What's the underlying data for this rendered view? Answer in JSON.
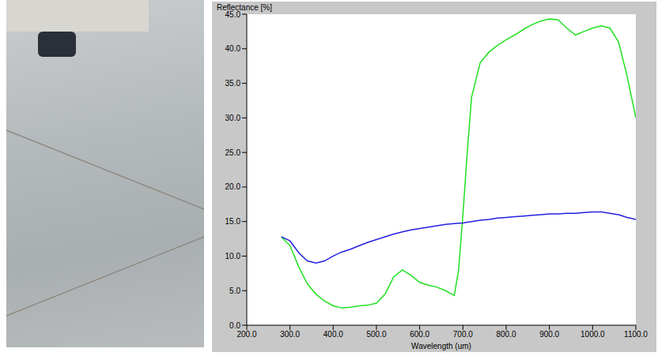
{
  "chart_data": {
    "type": "line",
    "y_label": "Reflectance [%]",
    "x_label": "Wavelength (um)",
    "x": [
      280,
      300,
      320,
      340,
      360,
      380,
      400,
      420,
      440,
      460,
      480,
      500,
      520,
      540,
      560,
      580,
      600,
      620,
      640,
      660,
      680,
      690,
      700,
      710,
      720,
      740,
      760,
      780,
      800,
      820,
      840,
      860,
      880,
      900,
      920,
      940,
      960,
      980,
      1000,
      1020,
      1040,
      1060,
      1080,
      1100
    ],
    "series": [
      {
        "color": "#22e022",
        "values": [
          12.8,
          11.5,
          8.5,
          6,
          4.5,
          3.5,
          2.8,
          2.5,
          2.6,
          2.8,
          2.9,
          3.2,
          4.5,
          7,
          8.0,
          7.2,
          6.2,
          5.8,
          5.5,
          5.0,
          4.3,
          8,
          16,
          25,
          33,
          38,
          39.5,
          40.5,
          41.3,
          42,
          42.8,
          43.5,
          44,
          44.3,
          44.2,
          43,
          42,
          42.5,
          43,
          43.3,
          43,
          41,
          36,
          30
        ]
      },
      {
        "color": "#2222e0",
        "values": [
          12.8,
          12.2,
          10.5,
          9.3,
          9.0,
          9.3,
          10,
          10.6,
          11,
          11.5,
          12,
          12.4,
          12.8,
          13.2,
          13.5,
          13.8,
          14,
          14.2,
          14.4,
          14.6,
          14.7,
          14.75,
          14.8,
          14.9,
          15,
          15.2,
          15.3,
          15.5,
          15.6,
          15.7,
          15.8,
          15.9,
          16,
          16.1,
          16.1,
          16.2,
          16.2,
          16.3,
          16.4,
          16.4,
          16.2,
          16,
          15.6,
          15.3
        ]
      }
    ],
    "xlim": [
      200,
      1100
    ],
    "xticks": [
      {
        "value": 200,
        "label": "200.0"
      },
      {
        "value": 300,
        "label": "300.0"
      },
      {
        "value": 400,
        "label": "400.0"
      },
      {
        "value": 500,
        "label": "500.0"
      },
      {
        "value": 600,
        "label": "600.0"
      },
      {
        "value": 700,
        "label": "700.0"
      },
      {
        "value": 800,
        "label": "800.0"
      },
      {
        "value": 900,
        "label": "900.0"
      },
      {
        "value": 1000,
        "label": "1000.0"
      },
      {
        "value": 1100,
        "label": "1100.0"
      }
    ],
    "ylim": [
      0,
      45
    ],
    "yticks": [
      {
        "value": 0,
        "label": "0.0"
      },
      {
        "value": 5,
        "label": "5.0"
      },
      {
        "value": 10,
        "label": "10.0"
      },
      {
        "value": 15,
        "label": "15.0"
      },
      {
        "value": 20,
        "label": "20.0"
      },
      {
        "value": 25,
        "label": "25.0"
      },
      {
        "value": 30,
        "label": "30.0"
      },
      {
        "value": 35,
        "label": "35.0"
      },
      {
        "value": 40,
        "label": "40.0"
      },
      {
        "value": 45,
        "label": "45.0"
      }
    ],
    "grid": false
  }
}
